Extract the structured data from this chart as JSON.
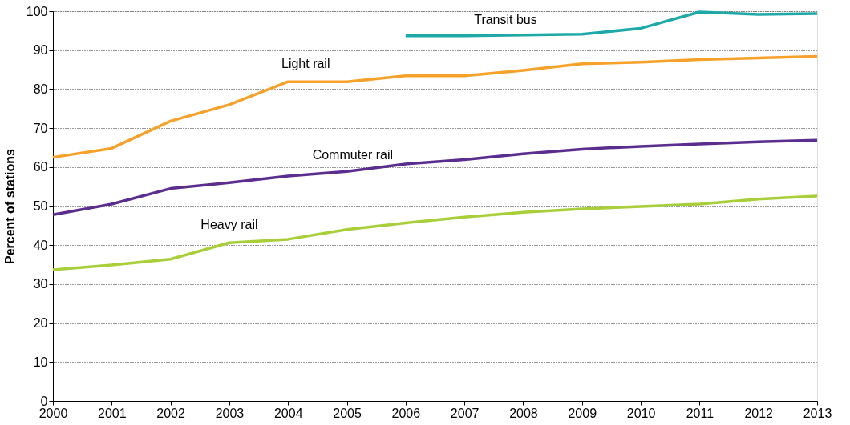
{
  "chart_data": {
    "type": "line",
    "ylabel": "Percent of stations",
    "x": [
      2000,
      2001,
      2002,
      2003,
      2004,
      2005,
      2006,
      2007,
      2008,
      2009,
      2010,
      2011,
      2012,
      2013
    ],
    "xlim": [
      2000,
      2013
    ],
    "xticks": [
      2000,
      2001,
      2002,
      2003,
      2004,
      2005,
      2006,
      2007,
      2008,
      2009,
      2010,
      2011,
      2012,
      2013
    ],
    "ylim": [
      0,
      100
    ],
    "yticks": [
      0,
      10,
      20,
      30,
      40,
      50,
      60,
      70,
      80,
      90,
      100
    ],
    "grid": "y",
    "legend": false,
    "marker": "none",
    "line_style": "solid",
    "series": [
      {
        "name": "Transit bus",
        "color": "#1fa8a8",
        "values": [
          null,
          null,
          null,
          null,
          null,
          null,
          93.7,
          93.7,
          93.9,
          94.1,
          95.6,
          99.8,
          99.2,
          99.4
        ]
      },
      {
        "name": "Light rail",
        "color": "#f5a12a",
        "values": [
          62.5,
          64.8,
          71.8,
          76,
          81.9,
          81.9,
          83.4,
          83.4,
          84.8,
          86.5,
          86.9,
          87.6,
          88,
          88.4
        ]
      },
      {
        "name": "Commuter rail",
        "color": "#5b2d8e",
        "values": [
          47.8,
          50.5,
          54.5,
          56,
          57.7,
          58.9,
          60.8,
          61.9,
          63.4,
          64.6,
          65.3,
          65.9,
          66.5,
          66.9
        ]
      },
      {
        "name": "Heavy rail",
        "color": "#a8cf3a",
        "values": [
          33.7,
          34.9,
          36.4,
          40.6,
          41.5,
          44,
          45.7,
          47.2,
          48.4,
          49.3,
          49.9,
          50.5,
          51.8,
          52.6
        ]
      }
    ]
  }
}
